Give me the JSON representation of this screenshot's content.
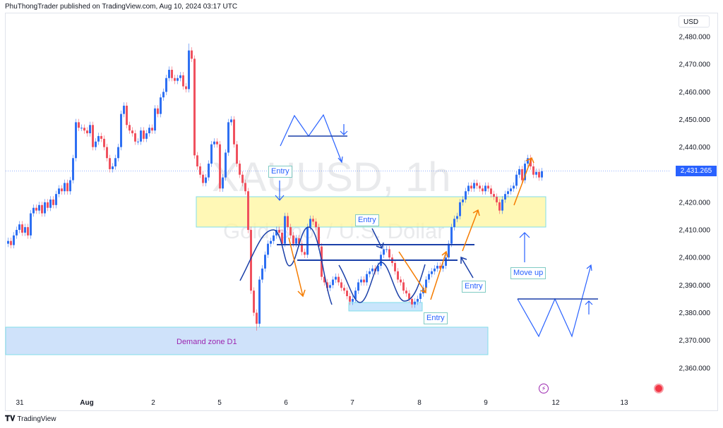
{
  "header": {
    "text": "PhuThongTrader published on TradingView.com, Aug 10, 2024 03:17 UTC"
  },
  "footer": {
    "brand": "TradingView"
  },
  "colors": {
    "up": "#2e6ff2",
    "down": "#f0515e",
    "accent": "#2962ff",
    "supply_zone": "#fff59d",
    "demand_zone": "#cfe2fa",
    "annotation_orange": "#f57c00",
    "annotation_blue": "#1a3fa8",
    "demand_text": "#9c27b0"
  },
  "watermark": {
    "symbol": "XAUUSD, 1h",
    "name": "Gold Spot / U.S. Dollar"
  },
  "price_axis": {
    "currency": "USD",
    "last_price": "2,431.265"
  },
  "annotations": {
    "entry_labels": [
      "Entry",
      "Entry",
      "Entry",
      "Entry"
    ],
    "move_up": "Move up",
    "demand_zone": "Demand zone D1"
  },
  "events": [
    {
      "icon": "lightning-icon",
      "color": "#9c27b0"
    },
    {
      "icon": "us-flag-icon",
      "color": "#f23645"
    }
  ],
  "chart_data": {
    "type": "candlestick",
    "symbol": "XAUUSD",
    "interval": "1h",
    "ylim": [
      2355,
      2485
    ],
    "y_ticks": [
      {
        "value": 2480,
        "label": "2,480.000"
      },
      {
        "value": 2470,
        "label": "2,470.000"
      },
      {
        "value": 2460,
        "label": "2,460.000"
      },
      {
        "value": 2450,
        "label": "2,450.000"
      },
      {
        "value": 2440,
        "label": "2,440.000"
      },
      {
        "value": 2420,
        "label": "2,420.000"
      },
      {
        "value": 2410,
        "label": "2,410.000"
      },
      {
        "value": 2400,
        "label": "2,400.000"
      },
      {
        "value": 2390,
        "label": "2,390.000"
      },
      {
        "value": 2380,
        "label": "2,380.000"
      },
      {
        "value": 2370,
        "label": "2,370.000"
      },
      {
        "value": 2360,
        "label": "2,360.000"
      }
    ],
    "x_ticks": [
      "31",
      "Aug",
      "2",
      "5",
      "6",
      "7",
      "8",
      "9",
      "12",
      "13"
    ],
    "last_price": 2431.265,
    "first_open": 2405,
    "close": [
      2406,
      2404.5,
      2408,
      2410,
      2412,
      2409,
      2411,
      2408,
      2416,
      2418,
      2417,
      2419,
      2416,
      2420,
      2418,
      2421,
      2419,
      2423,
      2425,
      2424,
      2427,
      2424,
      2428,
      2436,
      2449,
      2447,
      2447,
      2446,
      2445,
      2448,
      2440,
      2442,
      2444,
      2443,
      2440,
      2436,
      2432,
      2433,
      2436,
      2440,
      2452,
      2455,
      2448,
      2446,
      2445,
      2442,
      2442,
      2446,
      2443,
      2445,
      2447,
      2446,
      2454,
      2452,
      2458,
      2460,
      2465,
      2468,
      2465,
      2464,
      2465,
      2466,
      2462,
      2461,
      2475,
      2472,
      2437,
      2433,
      2430,
      2427,
      2429,
      2434,
      2441,
      2442,
      2441,
      2425,
      2429,
      2438,
      2449,
      2450,
      2441,
      2434,
      2430,
      2427,
      2424,
      2410,
      2388,
      2380,
      2376,
      2392,
      2396,
      2401,
      2405,
      2406,
      2408,
      2410,
      2409,
      2405,
      2415,
      2411,
      2408,
      2405,
      2407,
      2405,
      2402,
      2401,
      2411,
      2414,
      2413,
      2411,
      2404,
      2393,
      2391,
      2389,
      2390,
      2392,
      2393,
      2391,
      2389,
      2388,
      2386,
      2384,
      2385,
      2388,
      2391,
      2392,
      2391,
      2394,
      2395,
      2396,
      2395,
      2397,
      2401,
      2403,
      2403,
      2400,
      2398,
      2395,
      2392,
      2391,
      2388,
      2387,
      2385,
      2383,
      2384,
      2385,
      2387,
      2389,
      2392,
      2394,
      2395,
      2396,
      2397,
      2396,
      2397,
      2400,
      2405,
      2411,
      2414,
      2415,
      2420,
      2421,
      2424,
      2426,
      2425,
      2427,
      2426,
      2425,
      2424,
      2426,
      2425,
      2423,
      2422,
      2420,
      2417,
      2421,
      2423,
      2424,
      2425,
      2426,
      2430,
      2432,
      2428,
      2434,
      2436,
      2433,
      2430,
      2431,
      2429,
      2431.265
    ],
    "wick_extremes": {
      "high": 2477.5,
      "low": 2373.5
    }
  }
}
